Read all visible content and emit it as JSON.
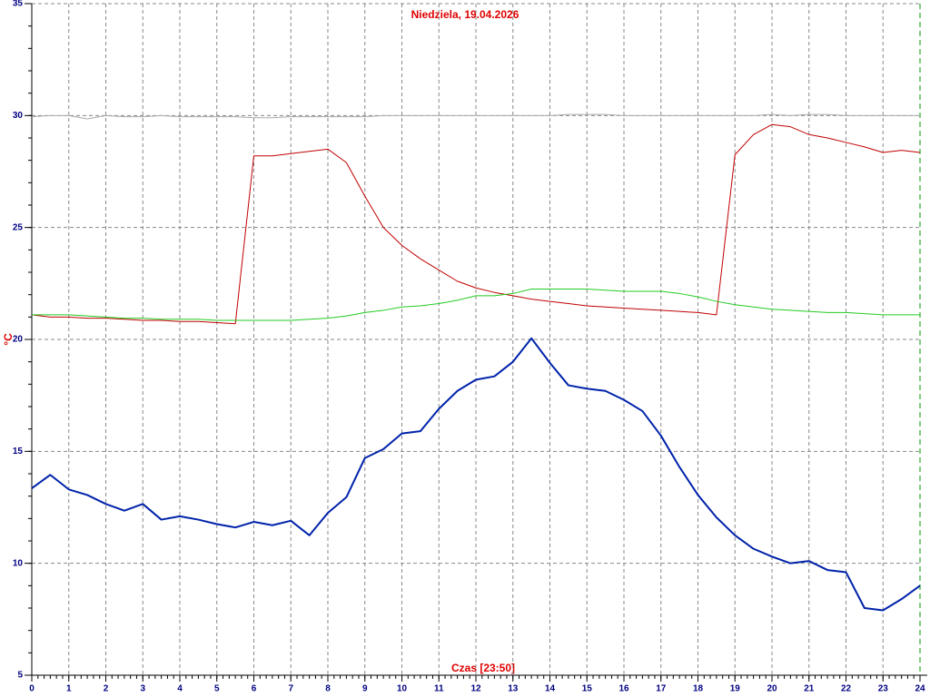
{
  "chart_data": {
    "type": "line",
    "title": "Niedziela, 19.04.2026",
    "x_label": "Czas [23:50]",
    "y_label": "°C",
    "x": [
      0,
      0.5,
      1,
      1.5,
      2,
      2.5,
      3,
      3.5,
      4,
      4.5,
      5,
      5.5,
      6,
      6.5,
      7,
      7.5,
      8,
      8.5,
      9,
      9.5,
      10,
      10.5,
      11,
      11.5,
      12,
      12.5,
      13,
      13.5,
      14,
      14.5,
      15,
      15.5,
      16,
      16.5,
      17,
      17.5,
      18,
      18.5,
      19,
      19.5,
      20,
      20.5,
      21,
      21.5,
      22,
      22.5,
      23,
      23.5,
      24
    ],
    "xlim": [
      0,
      24
    ],
    "xticks": [
      0,
      1,
      2,
      3,
      4,
      5,
      6,
      7,
      8,
      9,
      10,
      11,
      12,
      13,
      14,
      15,
      16,
      17,
      18,
      19,
      20,
      21,
      22,
      23,
      24
    ],
    "ylim": [
      5,
      35
    ],
    "yticks": [
      5,
      10,
      15,
      20,
      25,
      30,
      35
    ],
    "grid": true,
    "series": [
      {
        "color": "#aaaaaa",
        "line_width": 1,
        "values": [
          29.95,
          30.0,
          30.0,
          29.85,
          30.0,
          29.95,
          29.95,
          30.0,
          29.95,
          29.95,
          29.95,
          29.95,
          29.9,
          29.9,
          29.95,
          29.95,
          29.95,
          29.95,
          29.95,
          30.0,
          30.0,
          30.0,
          30.0,
          30.0,
          30.0,
          30.0,
          30.0,
          30.0,
          30.0,
          30.05,
          30.05,
          30.05,
          30.0,
          30.0,
          30.0,
          30.0,
          30.0,
          30.0,
          30.0,
          30.0,
          30.05,
          30.0,
          30.05,
          30.05,
          30.0,
          30.0,
          30.0,
          30.0,
          30.0
        ]
      },
      {
        "color": "#c00000",
        "line_width": 1,
        "values": [
          21.1,
          21.0,
          21.0,
          20.95,
          20.95,
          20.9,
          20.85,
          20.85,
          20.8,
          20.8,
          20.75,
          20.7,
          28.2,
          28.2,
          28.3,
          28.4,
          28.5,
          27.9,
          26.4,
          25.0,
          24.2,
          23.6,
          23.1,
          22.6,
          22.3,
          22.1,
          21.95,
          21.8,
          21.7,
          21.6,
          21.5,
          21.45,
          21.4,
          21.35,
          21.3,
          21.25,
          21.2,
          21.1,
          28.25,
          29.15,
          29.6,
          29.5,
          29.15,
          29.0,
          28.8,
          28.6,
          28.35,
          28.45,
          28.35
        ]
      },
      {
        "color": "#22cc22",
        "line_width": 1,
        "values": [
          21.1,
          21.1,
          21.1,
          21.05,
          21.0,
          20.95,
          20.95,
          20.9,
          20.9,
          20.9,
          20.85,
          20.85,
          20.85,
          20.85,
          20.85,
          20.9,
          20.95,
          21.05,
          21.2,
          21.3,
          21.45,
          21.5,
          21.6,
          21.75,
          21.95,
          21.95,
          22.05,
          22.25,
          22.25,
          22.25,
          22.25,
          22.2,
          22.15,
          22.15,
          22.15,
          22.05,
          21.9,
          21.7,
          21.55,
          21.45,
          21.35,
          21.3,
          21.25,
          21.2,
          21.2,
          21.15,
          21.1,
          21.1,
          21.1
        ]
      },
      {
        "color": "#0022aa",
        "line_width": 2,
        "values": [
          13.35,
          13.95,
          13.3,
          13.05,
          12.65,
          12.35,
          12.65,
          11.95,
          12.1,
          11.95,
          11.75,
          11.6,
          11.85,
          11.7,
          11.9,
          11.25,
          12.25,
          12.95,
          14.7,
          15.1,
          15.8,
          15.9,
          16.9,
          17.7,
          18.2,
          18.35,
          19.0,
          20.05,
          18.95,
          17.95,
          17.8,
          17.7,
          17.3,
          16.8,
          15.7,
          14.3,
          13.05,
          12.05,
          11.25,
          10.65,
          10.3,
          10.0,
          10.1,
          9.7,
          9.6,
          8.0,
          7.9,
          8.4,
          9.0
        ]
      }
    ]
  }
}
